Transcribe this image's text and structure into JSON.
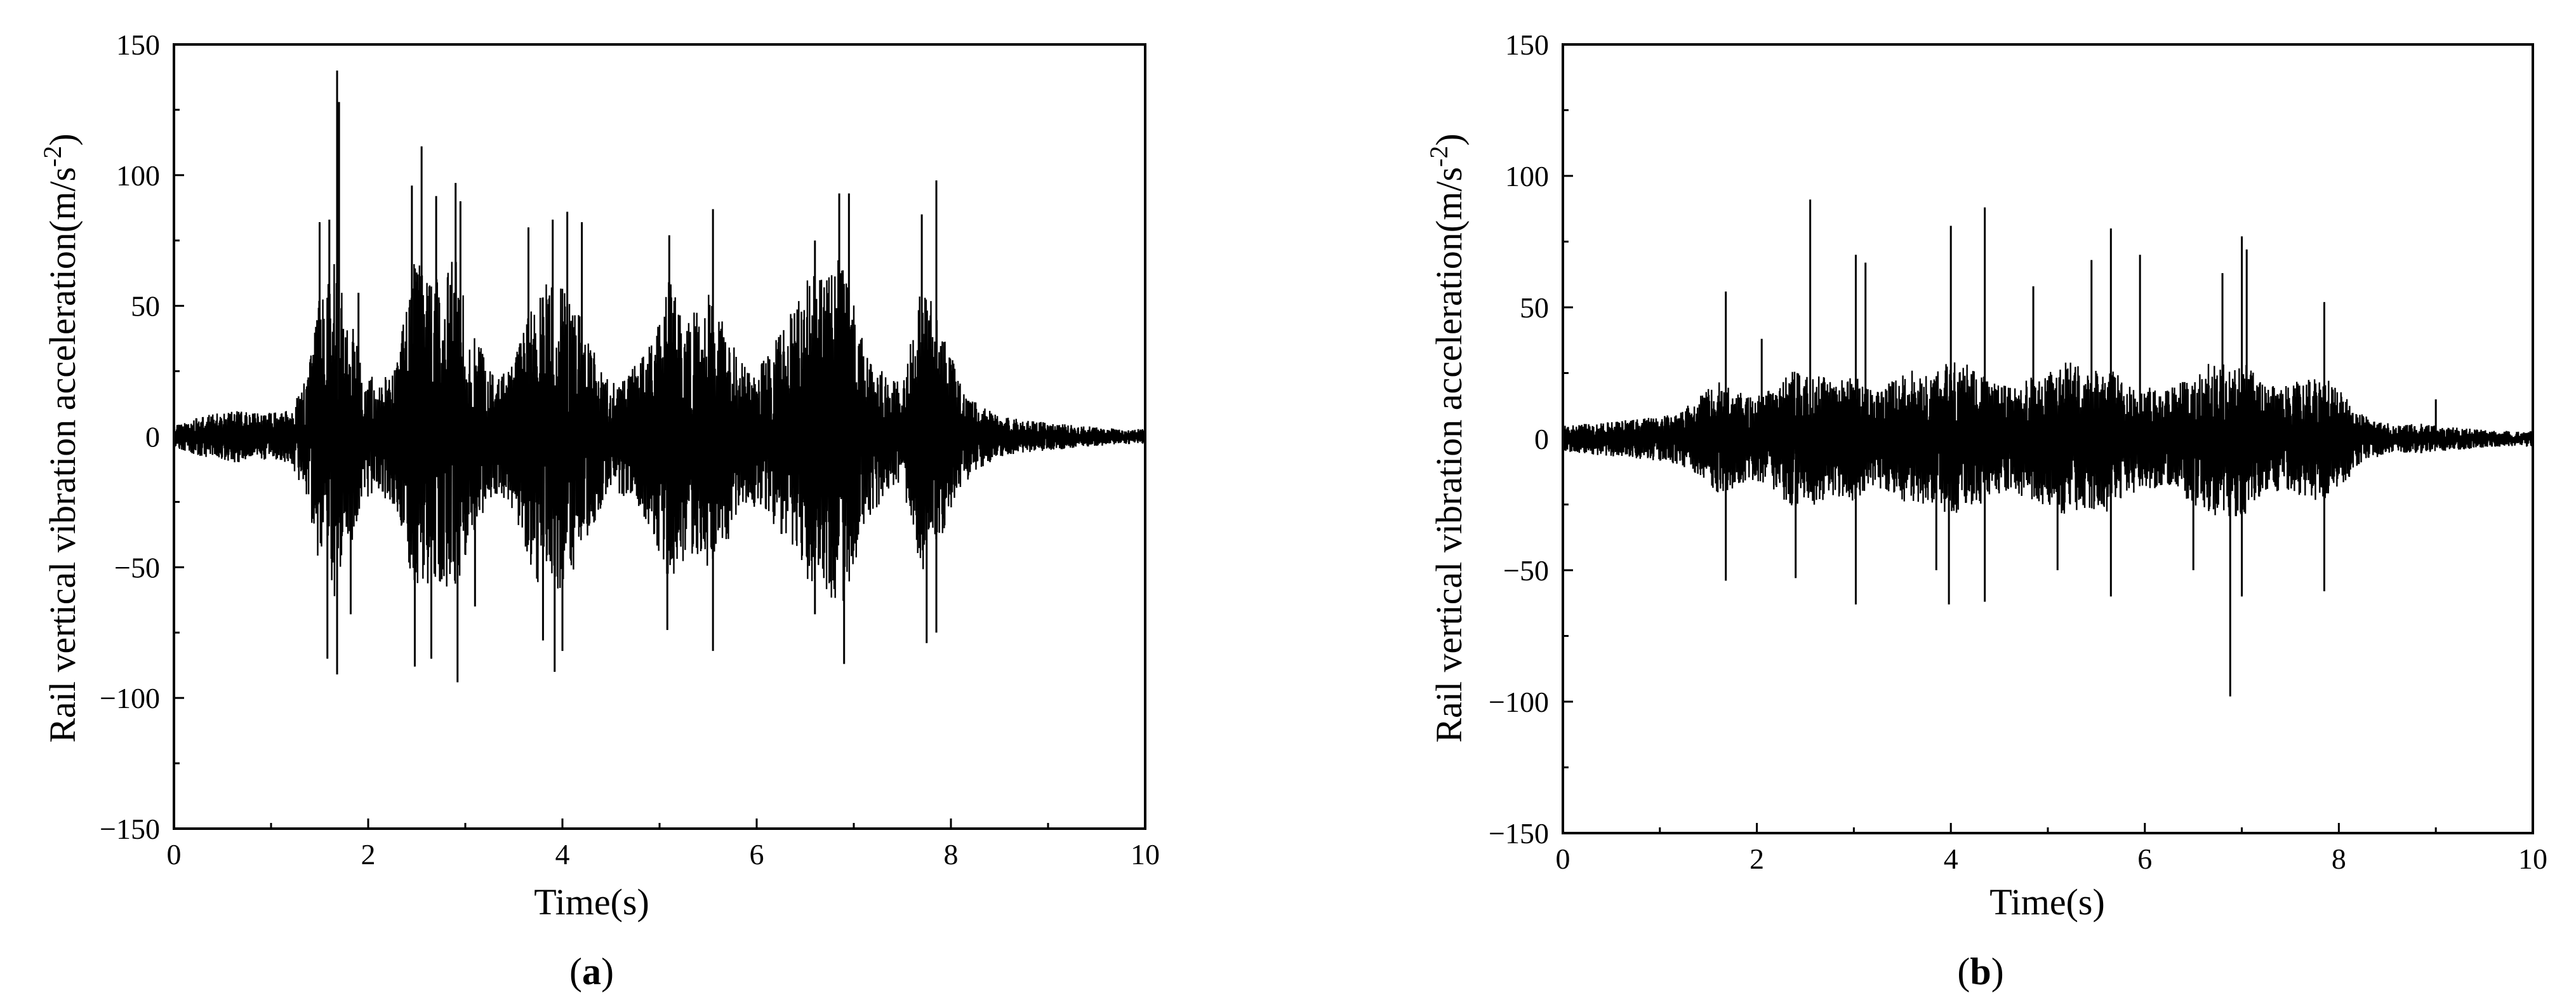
{
  "figure": {
    "panels": [
      {
        "caption_open": "(",
        "caption_letter": "a",
        "caption_close": ")"
      },
      {
        "caption_open": "(",
        "caption_letter": "b",
        "caption_close": ")"
      }
    ]
  },
  "colors": {
    "signal": "#000000",
    "axes": "#000000",
    "background": "#ffffff"
  },
  "chart_data": [
    {
      "type": "line",
      "title": "",
      "xlabel": "Time(s)",
      "ylabel": "Rail  vertical vibration acceleration(m/s",
      "ylabel_sup": "-2",
      "ylabel_close": ")",
      "xlim": [
        0,
        10
      ],
      "ylim": [
        -150,
        150
      ],
      "xticks": [
        0,
        2,
        4,
        6,
        8,
        10
      ],
      "xtick_labels": [
        "0",
        "2",
        "4",
        "6",
        "8",
        "10"
      ],
      "yticks": [
        -150,
        -100,
        -50,
        0,
        50,
        100,
        150
      ],
      "ytick_labels": [
        "−150",
        "−100",
        "−50",
        "0",
        "50",
        "100",
        "150"
      ],
      "grid": false,
      "legend": "none",
      "series": [
        {
          "envelope": {
            "t": [
              0,
              0.3,
              0.6,
              0.9,
              1.2,
              1.35,
              1.5,
              1.65,
              1.8,
              1.95,
              2.1,
              2.3,
              2.5,
              2.7,
              2.9,
              3.1,
              3.3,
              3.5,
              3.7,
              3.9,
              4.1,
              4.3,
              4.5,
              4.7,
              4.9,
              5.1,
              5.3,
              5.5,
              5.7,
              5.9,
              6.1,
              6.3,
              6.5,
              6.7,
              6.9,
              7.1,
              7.3,
              7.5,
              7.7,
              7.9,
              8.1,
              8.3,
              8.5,
              8.8,
              9.1,
              9.4,
              9.7,
              10
            ],
            "upper": [
              4,
              8,
              10,
              9,
              10,
              22,
              55,
              75,
              50,
              28,
              20,
              30,
              75,
              60,
              70,
              40,
              22,
              28,
              55,
              60,
              55,
              35,
              20,
              25,
              35,
              60,
              50,
              55,
              40,
              25,
              30,
              45,
              60,
              65,
              70,
              35,
              25,
              20,
              60,
              45,
              20,
              12,
              8,
              6,
              5,
              4,
              3,
              3
            ],
            "lower": [
              -4,
              -8,
              -10,
              -9,
              -10,
              -22,
              -50,
              -65,
              -45,
              -25,
              -20,
              -30,
              -65,
              -55,
              -60,
              -35,
              -22,
              -30,
              -55,
              -60,
              -55,
              -35,
              -20,
              -25,
              -35,
              -55,
              -45,
              -50,
              -40,
              -25,
              -30,
              -40,
              -55,
              -60,
              -65,
              -35,
              -25,
              -20,
              -55,
              -40,
              -20,
              -12,
              -8,
              -6,
              -5,
              -4,
              -3,
              -3
            ]
          },
          "peaks": [
            {
              "t": 1.5,
              "v": 82
            },
            {
              "t": 1.6,
              "v": 83
            },
            {
              "t": 1.68,
              "v": 140
            },
            {
              "t": 1.7,
              "v": 128
            },
            {
              "t": 1.9,
              "v": 55
            },
            {
              "t": 2.45,
              "v": 96
            },
            {
              "t": 2.55,
              "v": 111
            },
            {
              "t": 2.7,
              "v": 92
            },
            {
              "t": 2.9,
              "v": 97
            },
            {
              "t": 2.95,
              "v": 90
            },
            {
              "t": 3.65,
              "v": 80
            },
            {
              "t": 3.9,
              "v": 83
            },
            {
              "t": 4.05,
              "v": 86
            },
            {
              "t": 4.2,
              "v": 82
            },
            {
              "t": 5.1,
              "v": 77
            },
            {
              "t": 5.55,
              "v": 87
            },
            {
              "t": 6.6,
              "v": 75
            },
            {
              "t": 6.85,
              "v": 93
            },
            {
              "t": 6.95,
              "v": 93
            },
            {
              "t": 7.7,
              "v": 85
            },
            {
              "t": 7.85,
              "v": 98
            },
            {
              "t": 1.58,
              "v": -85
            },
            {
              "t": 1.68,
              "v": -91
            },
            {
              "t": 1.82,
              "v": -68
            },
            {
              "t": 2.48,
              "v": -88
            },
            {
              "t": 2.65,
              "v": -85
            },
            {
              "t": 2.92,
              "v": -94
            },
            {
              "t": 3.1,
              "v": -65
            },
            {
              "t": 3.8,
              "v": -78
            },
            {
              "t": 4.0,
              "v": -82
            },
            {
              "t": 3.92,
              "v": -90
            },
            {
              "t": 5.08,
              "v": -74
            },
            {
              "t": 5.55,
              "v": -82
            },
            {
              "t": 6.6,
              "v": -68
            },
            {
              "t": 6.9,
              "v": -87
            },
            {
              "t": 7.75,
              "v": -79
            },
            {
              "t": 7.85,
              "v": -75
            }
          ]
        }
      ]
    },
    {
      "type": "line",
      "title": "",
      "xlabel": "Time(s)",
      "ylabel": "Rail  vertical vibration acceleration(m/s",
      "ylabel_sup": "-2",
      "ylabel_close": ")",
      "xlim": [
        0,
        10
      ],
      "ylim": [
        -150,
        150
      ],
      "xticks": [
        0,
        2,
        4,
        6,
        8,
        10
      ],
      "xtick_labels": [
        "0",
        "2",
        "4",
        "6",
        "8",
        "10"
      ],
      "yticks": [
        -150,
        -100,
        -50,
        0,
        50,
        100,
        150
      ],
      "ytick_labels": [
        "−150",
        "−100",
        "−50",
        "0",
        "50",
        "100",
        "150"
      ],
      "grid": false,
      "legend": "none",
      "series": [
        {
          "envelope": {
            "t": [
              0,
              0.3,
              0.6,
              0.9,
              1.2,
              1.4,
              1.6,
              1.8,
              2.0,
              2.2,
              2.4,
              2.6,
              2.8,
              3.0,
              3.2,
              3.4,
              3.6,
              3.8,
              4.0,
              4.2,
              4.4,
              4.6,
              4.8,
              5.0,
              5.2,
              5.4,
              5.6,
              5.8,
              6.0,
              6.2,
              6.4,
              6.6,
              6.8,
              7.0,
              7.2,
              7.4,
              7.6,
              7.8,
              8.0,
              8.2,
              8.4,
              8.6,
              8.8,
              9.0,
              9.3,
              9.6,
              10
            ],
            "upper": [
              5,
              6,
              7,
              8,
              10,
              16,
              22,
              18,
              16,
              20,
              28,
              25,
              22,
              24,
              18,
              22,
              26,
              24,
              30,
              28,
              22,
              20,
              24,
              26,
              30,
              26,
              28,
              22,
              20,
              18,
              22,
              28,
              30,
              30,
              22,
              20,
              22,
              24,
              20,
              10,
              7,
              5,
              6,
              5,
              4,
              3,
              3
            ],
            "lower": [
              -5,
              -6,
              -7,
              -8,
              -10,
              -15,
              -22,
              -18,
              -16,
              -20,
              -28,
              -25,
              -22,
              -24,
              -18,
              -22,
              -26,
              -24,
              -30,
              -28,
              -22,
              -20,
              -24,
              -26,
              -30,
              -26,
              -28,
              -22,
              -20,
              -18,
              -22,
              -28,
              -30,
              -30,
              -22,
              -20,
              -22,
              -24,
              -20,
              -10,
              -7,
              -5,
              -6,
              -5,
              -4,
              -3,
              -3
            ]
          },
          "peaks": [
            {
              "t": 1.68,
              "v": 56
            },
            {
              "t": 2.05,
              "v": 38
            },
            {
              "t": 2.55,
              "v": 91
            },
            {
              "t": 3.02,
              "v": 70
            },
            {
              "t": 3.12,
              "v": 67
            },
            {
              "t": 4.0,
              "v": 81
            },
            {
              "t": 4.35,
              "v": 88
            },
            {
              "t": 4.85,
              "v": 58
            },
            {
              "t": 5.45,
              "v": 68
            },
            {
              "t": 5.65,
              "v": 80
            },
            {
              "t": 5.95,
              "v": 70
            },
            {
              "t": 6.8,
              "v": 63
            },
            {
              "t": 7.0,
              "v": 77
            },
            {
              "t": 7.05,
              "v": 72
            },
            {
              "t": 7.85,
              "v": 52
            },
            {
              "t": 9.0,
              "v": 15
            },
            {
              "t": 1.68,
              "v": -54
            },
            {
              "t": 2.4,
              "v": -53
            },
            {
              "t": 3.02,
              "v": -63
            },
            {
              "t": 3.85,
              "v": -50
            },
            {
              "t": 3.98,
              "v": -63
            },
            {
              "t": 4.35,
              "v": -62
            },
            {
              "t": 5.1,
              "v": -50
            },
            {
              "t": 5.65,
              "v": -60
            },
            {
              "t": 6.5,
              "v": -50
            },
            {
              "t": 6.88,
              "v": -98
            },
            {
              "t": 7.0,
              "v": -60
            },
            {
              "t": 7.85,
              "v": -58
            }
          ]
        }
      ]
    }
  ]
}
